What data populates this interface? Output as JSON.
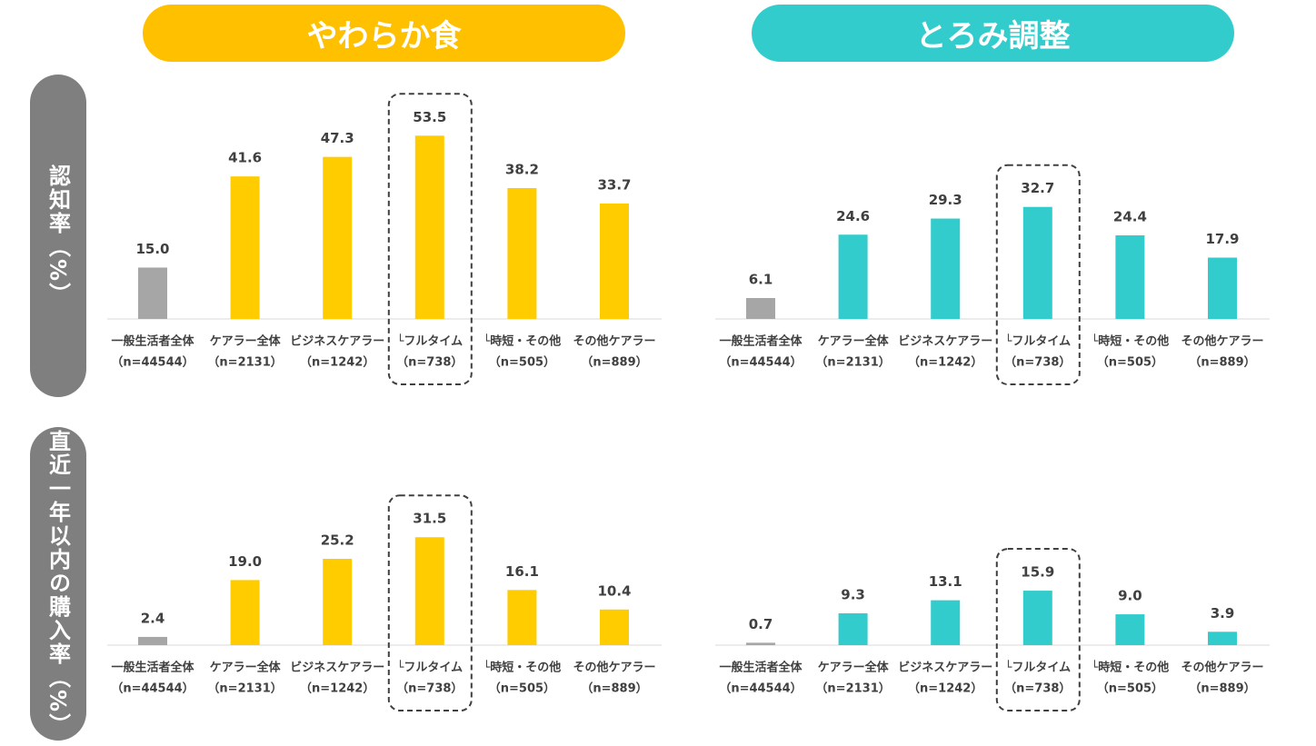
{
  "column_titles": [
    "やわらか食",
    "とろみ調整"
  ],
  "row_titles": [
    "認知率（%）",
    "直近一年以内の購入率（%）"
  ],
  "chart_data": [
    {
      "type": "bar",
      "categories": [
        "一般生活者全体",
        "ケアラー全体",
        "ビジネスケアラー",
        "└フルタイム",
        "└時短・その他",
        "その他ケアラー"
      ],
      "sample_sizes": [
        "（n=44544）",
        "（n=2131）",
        "（n=1242）",
        "（n=738）",
        "（n=505）",
        "（n=889）"
      ],
      "values": [
        15.0,
        41.6,
        47.3,
        53.5,
        38.2,
        33.7
      ],
      "value_labels": [
        "15.0",
        "41.6",
        "47.3",
        "53.5",
        "38.2",
        "33.7"
      ],
      "colors": [
        "#a6a6a6",
        "#ffcc00",
        "#ffcc00",
        "#ffcc00",
        "#ffcc00",
        "#ffcc00"
      ]
    },
    {
      "type": "bar",
      "categories": [
        "一般生活者全体",
        "ケアラー全体",
        "ビジネスケアラー",
        "└フルタイム",
        "└時短・その他",
        "その他ケアラー"
      ],
      "sample_sizes": [
        "（n=44544）",
        "（n=2131）",
        "（n=1242）",
        "（n=738）",
        "（n=505）",
        "（n=889）"
      ],
      "values": [
        6.1,
        24.6,
        29.3,
        32.7,
        24.4,
        17.9
      ],
      "colors": [
        "#a6a6a6",
        "#33cccc",
        "#33cccc",
        "#33cccc",
        "#33cccc",
        "#33cccc"
      ]
    },
    {
      "type": "bar",
      "categories": [
        "一般生活者全体",
        "ケアラー全体",
        "ビジネスケアラー",
        "└フルタイム",
        "└時短・その他",
        "その他ケアラー"
      ],
      "sample_sizes": [
        "（n=44544）",
        "（n=2131）",
        "（n=1242）",
        "（n=738）",
        "（n=505）",
        "（n=889）"
      ],
      "values": [
        2.4,
        19.0,
        25.2,
        31.5,
        16.1,
        10.4
      ],
      "value_labels": [
        "2.4",
        "19.0",
        "25.2",
        "31.5",
        "16.1",
        "10.4"
      ],
      "colors": [
        "#a6a6a6",
        "#ffcc00",
        "#ffcc00",
        "#ffcc00",
        "#ffcc00",
        "#ffcc00"
      ]
    },
    {
      "type": "bar",
      "categories": [
        "一般生活者全体",
        "ケアラー全体",
        "ビジネスケアラー",
        "└フルタイム",
        "└時短・その他",
        "その他ケアラー"
      ],
      "sample_sizes": [
        "（n=44544）",
        "（n=2131）",
        "（n=1242）",
        "（n=738）",
        "（n=505）",
        "（n=889）"
      ],
      "values": [
        0.7,
        9.3,
        13.1,
        15.9,
        9.0,
        3.9
      ],
      "value_labels": [
        "0.7",
        "9.3",
        "13.1",
        "15.9",
        "9.0",
        "3.9"
      ],
      "colors": [
        "#a6a6a6",
        "#33cccc",
        "#33cccc",
        "#33cccc",
        "#33cccc",
        "#33cccc"
      ]
    }
  ]
}
